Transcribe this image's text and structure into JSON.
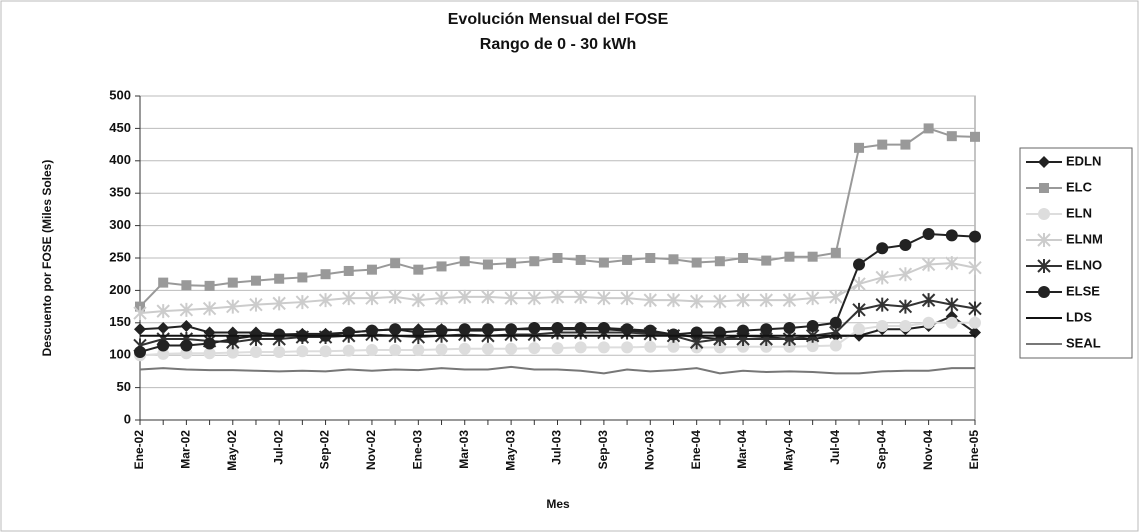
{
  "chart_data": {
    "type": "line",
    "title": "Evolución Mensual del FOSE",
    "subtitle": "Rango de 0 - 30 kWh",
    "x_label": "Mes",
    "y_label": "Descuento por FOSE (Miles Soles)",
    "categories": [
      "Ene-02",
      null,
      "Mar-02",
      null,
      "May-02",
      null,
      "Jul-02",
      null,
      "Sep-02",
      null,
      "Nov-02",
      null,
      "Ene-03",
      null,
      "Mar-03",
      null,
      "May-03",
      null,
      "Jul-03",
      null,
      "Sep-03",
      null,
      "Nov-03",
      null,
      "Ene-04",
      null,
      "Mar-04",
      null,
      "May-04",
      null,
      "Jul-04",
      null,
      "Sep-04",
      null,
      "Nov-04",
      null,
      "Ene-05"
    ],
    "ylim": [
      0,
      500
    ],
    "yticks": [
      0,
      50,
      100,
      150,
      200,
      250,
      300,
      350,
      400,
      450,
      500
    ],
    "grid": true,
    "legend": "right",
    "series": [
      {
        "name": "EDLN",
        "color": "#222222",
        "marker": "diamond",
        "values": [
          140,
          142,
          145,
          135,
          135,
          135,
          132,
          133,
          133,
          135,
          138,
          140,
          140,
          140,
          138,
          138,
          140,
          140,
          140,
          140,
          140,
          138,
          135,
          132,
          128,
          125,
          130,
          128,
          125,
          125,
          130,
          130,
          140,
          140,
          145,
          160,
          135
        ]
      },
      {
        "name": "ELC",
        "color": "#999999",
        "marker": "square",
        "values": [
          175,
          212,
          208,
          207,
          212,
          215,
          218,
          220,
          225,
          230,
          232,
          242,
          232,
          237,
          245,
          240,
          242,
          245,
          250,
          247,
          243,
          247,
          250,
          248,
          243,
          245,
          250,
          246,
          252,
          252,
          258,
          420,
          425,
          425,
          450,
          438,
          437
        ]
      },
      {
        "name": "ELN",
        "color": "#dddddd",
        "marker": "circle",
        "values": [
          100,
          102,
          103,
          103,
          104,
          105,
          105,
          106,
          106,
          107,
          108,
          108,
          108,
          109,
          110,
          110,
          110,
          111,
          111,
          112,
          112,
          112,
          113,
          113,
          112,
          112,
          113,
          113,
          113,
          114,
          115,
          140,
          145,
          145,
          150,
          150,
          150
        ]
      },
      {
        "name": "ELNM",
        "color": "#cccccc",
        "marker": "star",
        "values": [
          165,
          168,
          170,
          172,
          175,
          178,
          180,
          182,
          185,
          188,
          188,
          190,
          185,
          188,
          190,
          190,
          188,
          188,
          190,
          190,
          188,
          188,
          185,
          185,
          183,
          183,
          185,
          185,
          185,
          188,
          190,
          210,
          220,
          225,
          240,
          242,
          235
        ]
      },
      {
        "name": "ELNO",
        "color": "#333333",
        "marker": "star",
        "values": [
          115,
          125,
          125,
          122,
          120,
          125,
          125,
          128,
          128,
          130,
          132,
          130,
          128,
          130,
          132,
          130,
          132,
          132,
          135,
          135,
          135,
          135,
          133,
          130,
          120,
          125,
          125,
          125,
          125,
          130,
          135,
          170,
          178,
          175,
          185,
          178,
          172
        ]
      },
      {
        "name": "ELSE",
        "color": "#222222",
        "marker": "circle",
        "values": [
          105,
          115,
          115,
          118,
          125,
          130,
          132,
          130,
          130,
          135,
          138,
          140,
          135,
          138,
          140,
          140,
          140,
          142,
          142,
          142,
          142,
          140,
          138,
          132,
          135,
          135,
          138,
          140,
          142,
          145,
          150,
          240,
          265,
          270,
          287,
          285,
          283
        ]
      },
      {
        "name": "LDS",
        "color": "#111111",
        "marker": "none",
        "values": [
          130,
          130,
          130,
          130,
          130,
          130,
          130,
          130,
          130,
          130,
          130,
          130,
          130,
          130,
          130,
          130,
          130,
          130,
          130,
          130,
          130,
          130,
          130,
          130,
          130,
          130,
          130,
          130,
          130,
          130,
          130,
          130,
          130,
          130,
          130,
          130,
          130
        ]
      },
      {
        "name": "SEAL",
        "color": "#777777",
        "marker": "none",
        "values": [
          78,
          80,
          78,
          77,
          77,
          76,
          75,
          76,
          75,
          78,
          76,
          78,
          77,
          80,
          78,
          78,
          82,
          78,
          78,
          76,
          72,
          78,
          75,
          77,
          80,
          72,
          76,
          74,
          75,
          74,
          72,
          72,
          75,
          76,
          76,
          80,
          80
        ]
      }
    ]
  }
}
